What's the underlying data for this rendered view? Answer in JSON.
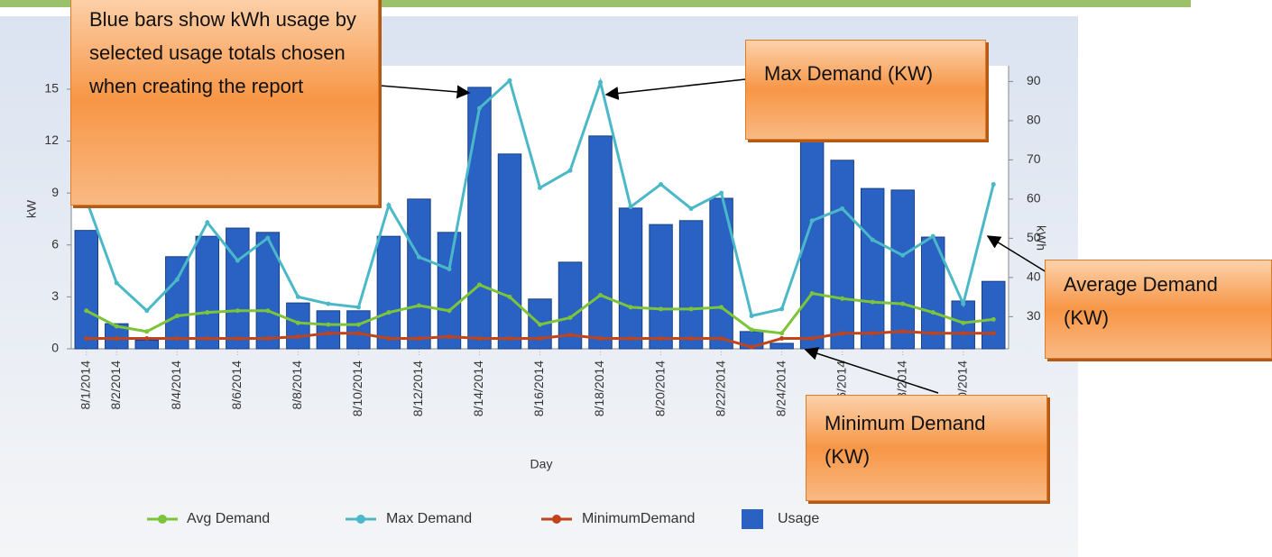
{
  "chart_data": {
    "type": "combo",
    "x_label": "Day",
    "y_label": "kW",
    "y2_label": "kWh",
    "categories": [
      "8/1/2014",
      "8/2/2014",
      null,
      "8/4/2014",
      null,
      "8/6/2014",
      null,
      "8/8/2014",
      null,
      "8/10/2014",
      null,
      "8/12/2014",
      null,
      "8/14/2014",
      null,
      "8/16/2014",
      null,
      "8/18/2014",
      null,
      "8/20/2014",
      null,
      "8/22/2014",
      null,
      "8/24/2014",
      null,
      "8/26/2014",
      null,
      "8/28/2014",
      null,
      "8/30/2014",
      null
    ],
    "series": [
      {
        "name": "Avg Demand",
        "kind": "line",
        "color": "#7cc43a",
        "values": [
          2.2,
          1.3,
          1.0,
          1.9,
          2.1,
          2.2,
          2.2,
          1.5,
          1.4,
          1.4,
          2.1,
          2.5,
          2.2,
          3.7,
          3.0,
          1.4,
          1.8,
          3.1,
          2.4,
          2.3,
          2.3,
          2.4,
          1.1,
          0.9,
          3.2,
          2.9,
          2.7,
          2.6,
          2.1,
          1.5,
          1.7
        ]
      },
      {
        "name": "Max Demand",
        "kind": "line",
        "color": "#4bb8c8",
        "values": [
          8.6,
          3.8,
          2.2,
          4.0,
          7.3,
          5.1,
          6.4,
          3.0,
          2.6,
          2.4,
          8.3,
          5.3,
          4.6,
          13.9,
          15.5,
          9.3,
          10.3,
          15.4,
          8.2,
          9.5,
          8.1,
          9.0,
          1.9,
          2.3,
          7.4,
          8.1,
          6.3,
          5.4,
          6.5,
          2.6,
          9.5
        ]
      },
      {
        "name": "MinimumDemand",
        "kind": "line",
        "color": "#c0441b",
        "values": [
          0.6,
          0.6,
          0.6,
          0.6,
          0.6,
          0.6,
          0.6,
          0.7,
          0.9,
          0.9,
          0.6,
          0.6,
          0.7,
          0.6,
          0.6,
          0.6,
          0.8,
          0.6,
          0.6,
          0.6,
          0.6,
          0.6,
          0.1,
          0.6,
          0.6,
          0.9,
          0.9,
          1.0,
          0.9,
          0.9,
          0.9
        ]
      },
      {
        "name": "Usage",
        "kind": "bar",
        "axis": "y2",
        "color": "#2a62c4",
        "values": [
          52,
          28.2,
          24,
          45.3,
          50.5,
          52.6,
          51.5,
          33.5,
          31.5,
          31.5,
          50.5,
          60,
          51.5,
          88.5,
          71.5,
          34.5,
          43.9,
          76.1,
          57.7,
          53.5,
          54.5,
          60.2,
          26.2,
          23.2,
          82,
          69.9,
          62.7,
          62.3,
          50.3,
          34,
          39
        ]
      }
    ],
    "ylim": [
      0,
      16.35
    ],
    "yticks": [
      0,
      3,
      6,
      9,
      12,
      15
    ],
    "y2lim": [
      21.8,
      94
    ],
    "y2ticks": [
      30,
      40,
      50,
      60,
      70,
      80,
      90
    ],
    "annotations": [
      "Blue bars show kWh usage by selected usage totals chosen when creating the report",
      "Max Demand (KW)",
      "Average Demand (KW)",
      "Minimum Demand (KW)"
    ]
  }
}
